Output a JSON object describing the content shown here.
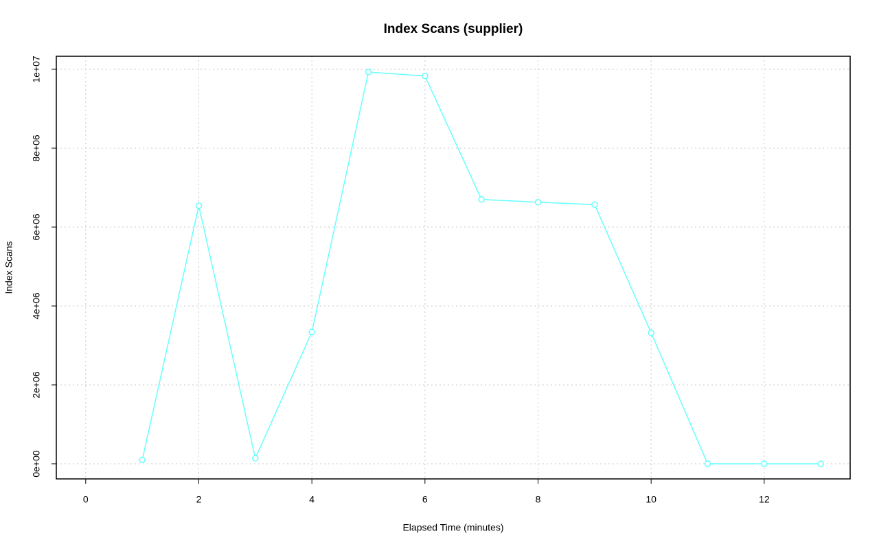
{
  "chart_data": {
    "type": "line",
    "title": "Index Scans (supplier)",
    "x_label": "Elapsed Time (minutes)",
    "y_label": "Index Scans",
    "x": [
      1,
      2,
      3,
      4,
      5,
      6,
      7,
      8,
      9,
      10,
      11,
      12,
      13
    ],
    "values": [
      100000,
      6540000,
      140000,
      3340000,
      9930000,
      9830000,
      6700000,
      6630000,
      6570000,
      3320000,
      0,
      0,
      0
    ],
    "color": "#66ffff",
    "xlim": [
      -0.52,
      13.52
    ],
    "xticks": [
      0,
      2,
      4,
      6,
      8,
      10,
      12
    ],
    "ylim": [
      -383000,
      10330000
    ],
    "yticks": [
      {
        "value": 0,
        "label": "0e+00"
      },
      {
        "value": 2000000,
        "label": "2e+06"
      },
      {
        "value": 4000000,
        "label": "4e+06"
      },
      {
        "value": 6000000,
        "label": "6e+06"
      },
      {
        "value": 8000000,
        "label": "8e+06"
      },
      {
        "value": 10000000,
        "label": "1e+07"
      }
    ],
    "grid": true
  }
}
